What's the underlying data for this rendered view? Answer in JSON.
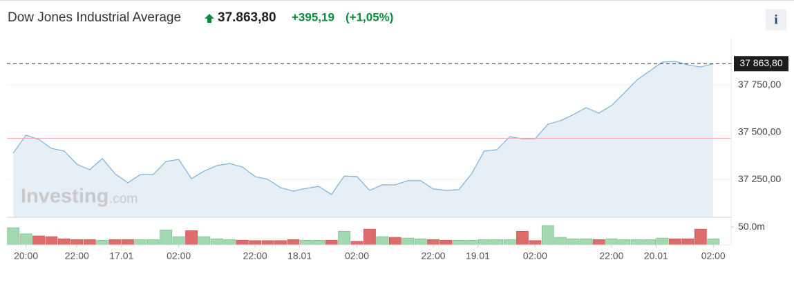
{
  "header": {
    "title": "Dow Jones Industrial Average",
    "price": "37.863,80",
    "change": "+395,19",
    "change_percent": "(+1,05%)",
    "info_button": "i"
  },
  "watermark": {
    "brand": "Investing",
    "suffix": ".com"
  },
  "chart_data": {
    "type": "area",
    "color": "#7fb0d9",
    "fill": "#e6eef6",
    "grid": true,
    "values": [
      37390,
      37485,
      37463,
      37415,
      37401,
      37331,
      37302,
      37361,
      37280,
      37233,
      37277,
      37277,
      37346,
      37357,
      37255,
      37295,
      37324,
      37335,
      37317,
      37266,
      37251,
      37207,
      37189,
      37203,
      37214,
      37171,
      37269,
      37266,
      37193,
      37222,
      37222,
      37244,
      37244,
      37200,
      37193,
      37196,
      37280,
      37401,
      37408,
      37477,
      37466,
      37466,
      37543,
      37562,
      37594,
      37631,
      37602,
      37642,
      37708,
      37777,
      37825,
      37872,
      37876,
      37857,
      37846,
      37863.8
    ],
    "ylim": [
      37050,
      38000
    ],
    "yticks": [
      {
        "value": 37250,
        "label": "37 250,00"
      },
      {
        "value": 37500,
        "label": "37 500,00"
      },
      {
        "value": 37750,
        "label": "37 750,00"
      }
    ],
    "xlim": [
      -0.5,
      56.4
    ],
    "xticks": [
      {
        "value": 1,
        "label": "20:00"
      },
      {
        "value": 5,
        "label": "22:00"
      },
      {
        "value": 8.5,
        "label": "17.01"
      },
      {
        "value": 13,
        "label": "02:00"
      },
      {
        "value": 19,
        "label": "22:00"
      },
      {
        "value": 22.5,
        "label": "18.01"
      },
      {
        "value": 27,
        "label": "02:00"
      },
      {
        "value": 33,
        "label": "22:00"
      },
      {
        "value": 36.5,
        "label": "19.01"
      },
      {
        "value": 41,
        "label": "02:00"
      },
      {
        "value": 47,
        "label": "22:00"
      },
      {
        "value": 50.5,
        "label": "20.01"
      },
      {
        "value": 55,
        "label": "02:00"
      }
    ],
    "last_value": {
      "value": 37863.8,
      "label": "37 863,80"
    },
    "reference_value": 37468.61,
    "reference_color": "#f2a7a7",
    "volume": {
      "type": "bar",
      "values": [
        48,
        31,
        25,
        23,
        17,
        15,
        15,
        13,
        15,
        15,
        15,
        15,
        42,
        23,
        40,
        23,
        17,
        15,
        13,
        12,
        12,
        12,
        15,
        13,
        13,
        13,
        38,
        10,
        44,
        23,
        21,
        19,
        17,
        15,
        13,
        13,
        13,
        15,
        15,
        15,
        38,
        12,
        54,
        21,
        17,
        17,
        15,
        17,
        15,
        15,
        15,
        19,
        17,
        17,
        44,
        17
      ],
      "colors": [
        "#a3d9b1",
        "#a3d9b1",
        "#e06b6b",
        "#e06b6b",
        "#e06b6b",
        "#e06b6b",
        "#e06b6b",
        "#a3d9b1",
        "#e06b6b",
        "#e06b6b",
        "#a3d9b1",
        "#a3d9b1",
        "#a3d9b1",
        "#a3d9b1",
        "#e06b6b",
        "#a3d9b1",
        "#a3d9b1",
        "#a3d9b1",
        "#e06b6b",
        "#e06b6b",
        "#e06b6b",
        "#e06b6b",
        "#e06b6b",
        "#a3d9b1",
        "#a3d9b1",
        "#e06b6b",
        "#a3d9b1",
        "#e06b6b",
        "#e06b6b",
        "#a3d9b1",
        "#e06b6b",
        "#a3d9b1",
        "#a3d9b1",
        "#e06b6b",
        "#e06b6b",
        "#a3d9b1",
        "#a3d9b1",
        "#a3d9b1",
        "#a3d9b1",
        "#a3d9b1",
        "#e06b6b",
        "#e06b6b",
        "#a3d9b1",
        "#a3d9b1",
        "#a3d9b1",
        "#a3d9b1",
        "#e06b6b",
        "#a3d9b1",
        "#a3d9b1",
        "#a3d9b1",
        "#a3d9b1",
        "#a3d9b1",
        "#e06b6b",
        "#e06b6b",
        "#e06b6b",
        "#a3d9b1"
      ],
      "ylim": [
        0,
        55
      ],
      "yticks": [
        {
          "value": 50,
          "label": "50.0m"
        }
      ]
    }
  }
}
